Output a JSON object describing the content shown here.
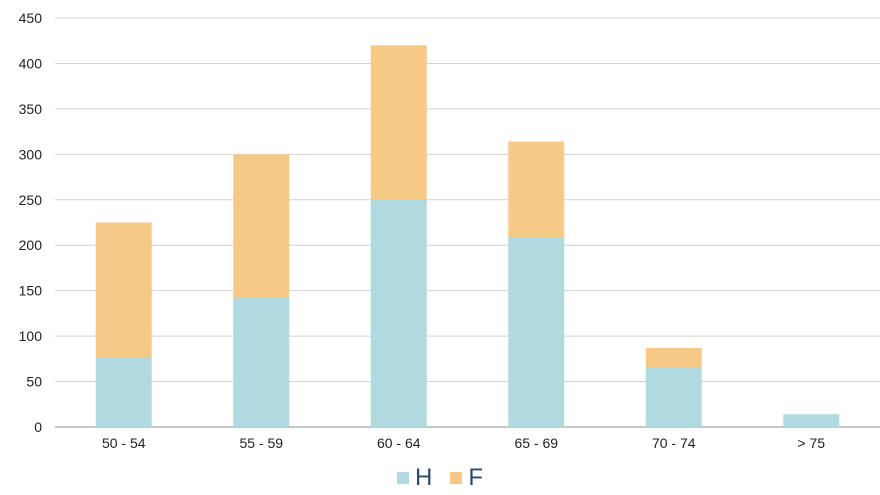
{
  "chart_data": {
    "type": "bar",
    "stacked": true,
    "categories": [
      "50 - 54",
      "55 - 59",
      "60 - 64",
      "65 - 69",
      "70 - 74",
      "> 75"
    ],
    "series": [
      {
        "name": "H",
        "color": "#b0dae0",
        "values": [
          77,
          143,
          250,
          209,
          66,
          14
        ]
      },
      {
        "name": "F",
        "color": "#f7c986",
        "values": [
          148,
          157,
          170,
          105,
          21,
          0
        ]
      }
    ],
    "ylim": [
      0,
      450
    ],
    "yticks": [
      "0",
      "50",
      "100",
      "150",
      "200",
      "250",
      "300",
      "350",
      "400",
      "450"
    ],
    "grid": true,
    "legend_position": "bottom"
  }
}
